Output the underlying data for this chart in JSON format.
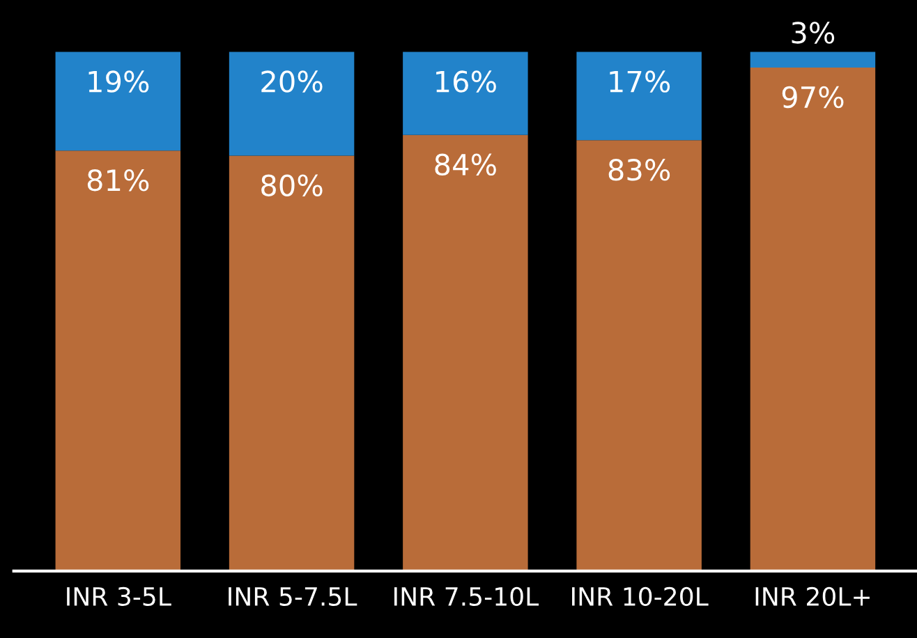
{
  "chart_data": {
    "type": "bar",
    "stacked": true,
    "categories": [
      "INR 3-5L",
      "INR 5-7.5L",
      "INR 7.5-10L",
      "INR 10-20L",
      "INR 20L+"
    ],
    "series": [
      {
        "color": "#b96c39",
        "values": [
          81,
          80,
          84,
          83,
          97
        ],
        "value_labels": [
          "81%",
          "80%",
          "84%",
          "83%",
          "97%"
        ]
      },
      {
        "color": "#2283ca",
        "values": [
          19,
          20,
          16,
          17,
          3
        ],
        "value_labels": [
          "19%",
          "20%",
          "16%",
          "17%",
          "3%"
        ]
      }
    ],
    "grid": false,
    "legend": false,
    "tick_labels": "x"
  }
}
